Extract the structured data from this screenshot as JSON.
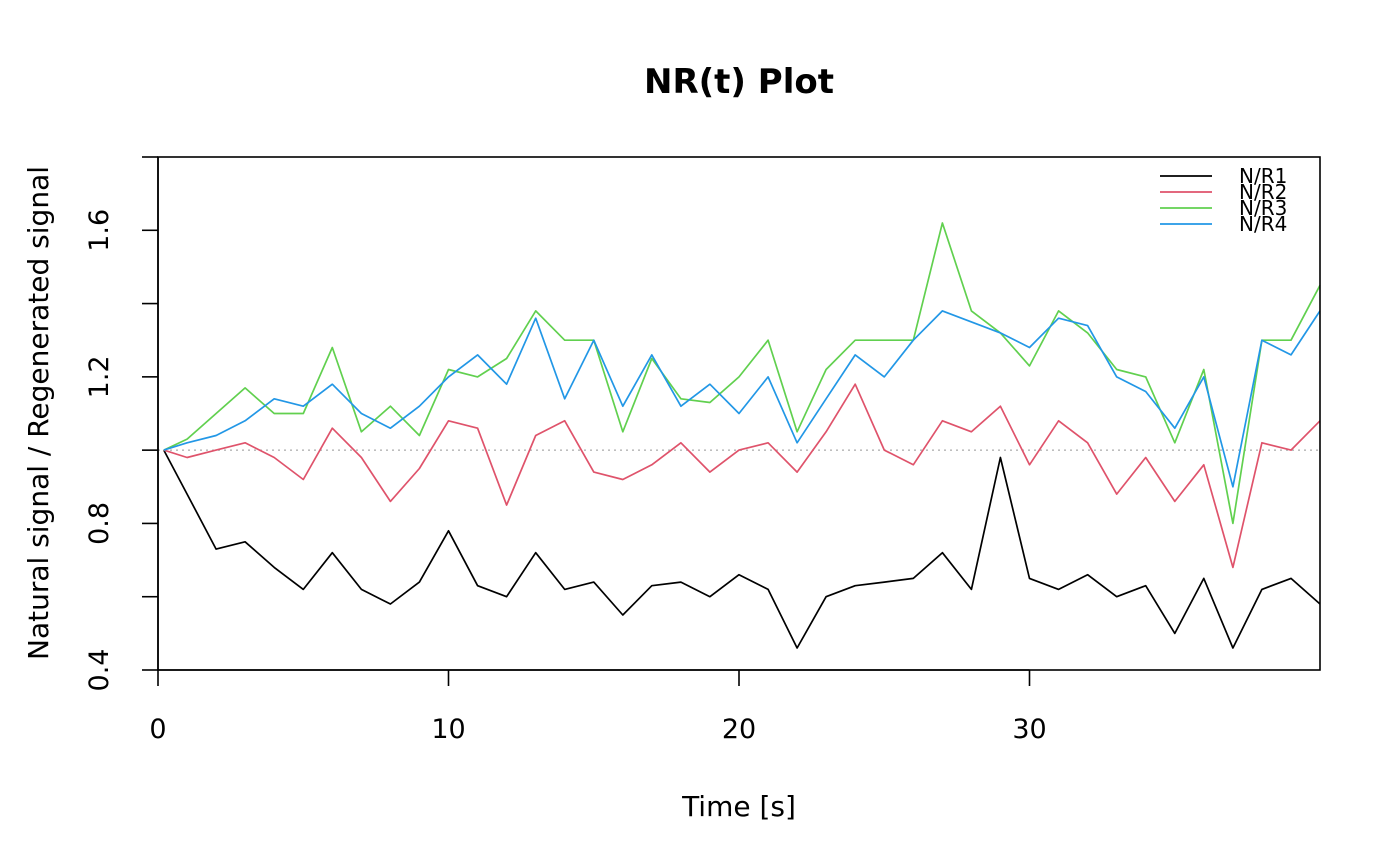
{
  "chart_data": {
    "type": "line",
    "title": "NR(t) Plot",
    "xlabel": "Time [s]",
    "ylabel": "Natural signal / Regenerated signal",
    "xlim": [
      0,
      40
    ],
    "ylim": [
      0.4,
      1.8
    ],
    "x_ticks": [
      0,
      10,
      20,
      30
    ],
    "x_tick_labels": [
      "0",
      "10",
      "20",
      "30"
    ],
    "y_ticks": [
      0.4,
      0.6,
      0.8,
      1.0,
      1.2,
      1.4,
      1.6,
      1.8
    ],
    "y_tick_labels": [
      "0.4",
      "",
      "0.8",
      "",
      "1.2",
      "",
      "1.6",
      ""
    ],
    "reference_line": {
      "y": 1.0,
      "style": "dotted",
      "color": "#bebebe"
    },
    "legend_position": "top-right",
    "grid": false,
    "x": [
      0.2,
      1,
      2,
      3,
      4,
      5,
      6,
      7,
      8,
      9,
      10,
      11,
      12,
      13,
      14,
      15,
      16,
      17,
      18,
      19,
      20,
      21,
      22,
      23,
      24,
      25,
      26,
      27,
      28,
      29,
      30,
      31,
      32,
      33,
      34,
      35,
      36,
      37,
      38,
      39,
      40
    ],
    "series": [
      {
        "name": "N/R1",
        "color": "#000000",
        "values": [
          1.0,
          0.88,
          0.73,
          0.75,
          0.68,
          0.62,
          0.72,
          0.62,
          0.58,
          0.64,
          0.78,
          0.63,
          0.6,
          0.72,
          0.62,
          0.64,
          0.55,
          0.63,
          0.64,
          0.6,
          0.66,
          0.62,
          0.46,
          0.6,
          0.63,
          0.64,
          0.65,
          0.72,
          0.62,
          0.98,
          0.65,
          0.62,
          0.66,
          0.6,
          0.63,
          0.5,
          0.65,
          0.46,
          0.62,
          0.65,
          0.58
        ]
      },
      {
        "name": "N/R2",
        "color": "#DF536B",
        "values": [
          1.0,
          0.98,
          1.0,
          1.02,
          0.98,
          0.92,
          1.06,
          0.98,
          0.86,
          0.95,
          1.08,
          1.06,
          0.85,
          1.04,
          1.08,
          0.94,
          0.92,
          0.96,
          1.02,
          0.94,
          1.0,
          1.02,
          0.94,
          1.05,
          1.18,
          1.0,
          0.96,
          1.08,
          1.05,
          1.12,
          0.96,
          1.08,
          1.02,
          0.88,
          0.98,
          0.86,
          0.96,
          0.68,
          1.02,
          1.0,
          1.08
        ]
      },
      {
        "name": "N/R3",
        "color": "#61D04F",
        "values": [
          1.0,
          1.03,
          1.1,
          1.17,
          1.1,
          1.1,
          1.28,
          1.05,
          1.12,
          1.04,
          1.22,
          1.2,
          1.25,
          1.38,
          1.3,
          1.3,
          1.05,
          1.25,
          1.14,
          1.13,
          1.2,
          1.3,
          1.05,
          1.22,
          1.3,
          1.3,
          1.3,
          1.62,
          1.38,
          1.32,
          1.23,
          1.38,
          1.32,
          1.22,
          1.2,
          1.02,
          1.22,
          0.8,
          1.3,
          1.3,
          1.45
        ]
      },
      {
        "name": "N/R4",
        "color": "#2297E6",
        "values": [
          1.0,
          1.02,
          1.04,
          1.08,
          1.14,
          1.12,
          1.18,
          1.1,
          1.06,
          1.12,
          1.2,
          1.26,
          1.18,
          1.36,
          1.14,
          1.3,
          1.12,
          1.26,
          1.12,
          1.18,
          1.1,
          1.2,
          1.02,
          1.14,
          1.26,
          1.2,
          1.3,
          1.38,
          1.35,
          1.32,
          1.28,
          1.36,
          1.34,
          1.2,
          1.16,
          1.06,
          1.2,
          0.9,
          1.3,
          1.26,
          1.38
        ]
      }
    ]
  }
}
